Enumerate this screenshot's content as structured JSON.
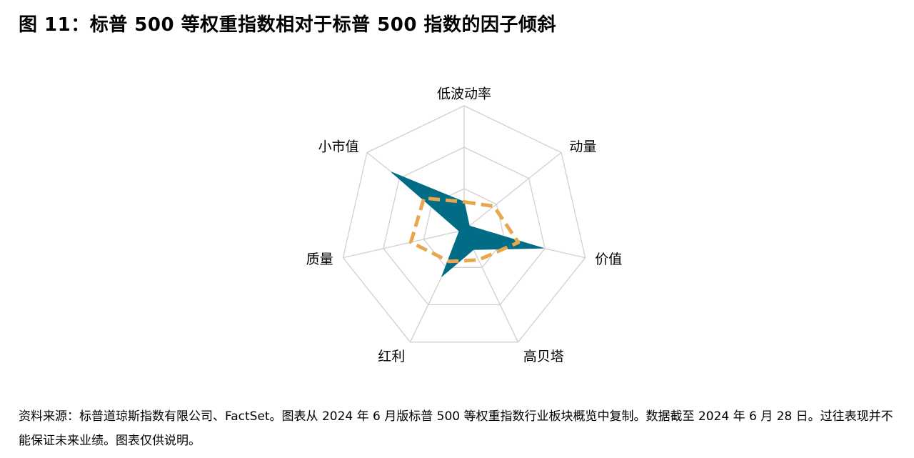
{
  "figure_title": "图 11：标普 500 等权重指数相对于标普 500 指数的因子倾斜",
  "source_note": "资料来源：标普道琼斯指数有限公司、FactSet。图表从 2024 年 6 月版标普 500 等权重指数行业板块概览中复制。数据截至 2024 年 6 月 28 日。过往表现并不能保证未来业绩。图表仅供说明。",
  "chart_data": {
    "type": "radar",
    "axes": [
      "低波动率",
      "动量",
      "价值",
      "高贝塔",
      "红利",
      "质量",
      "小市值"
    ],
    "series": [
      {
        "values": [
          0.34,
          0.08,
          0.98,
          0.26,
          0.62,
          0.06,
          1.12
        ],
        "color": "#006c86",
        "fill": "#006c86"
      },
      {
        "values": [
          0.34,
          0.46,
          0.67,
          0.4,
          0.42,
          0.66,
          0.62
        ],
        "color": "#e8a74e",
        "style": "dashed"
      }
    ],
    "rings": 3,
    "max": 1.5,
    "grid": true,
    "grid_color": "#d0d0d0"
  }
}
